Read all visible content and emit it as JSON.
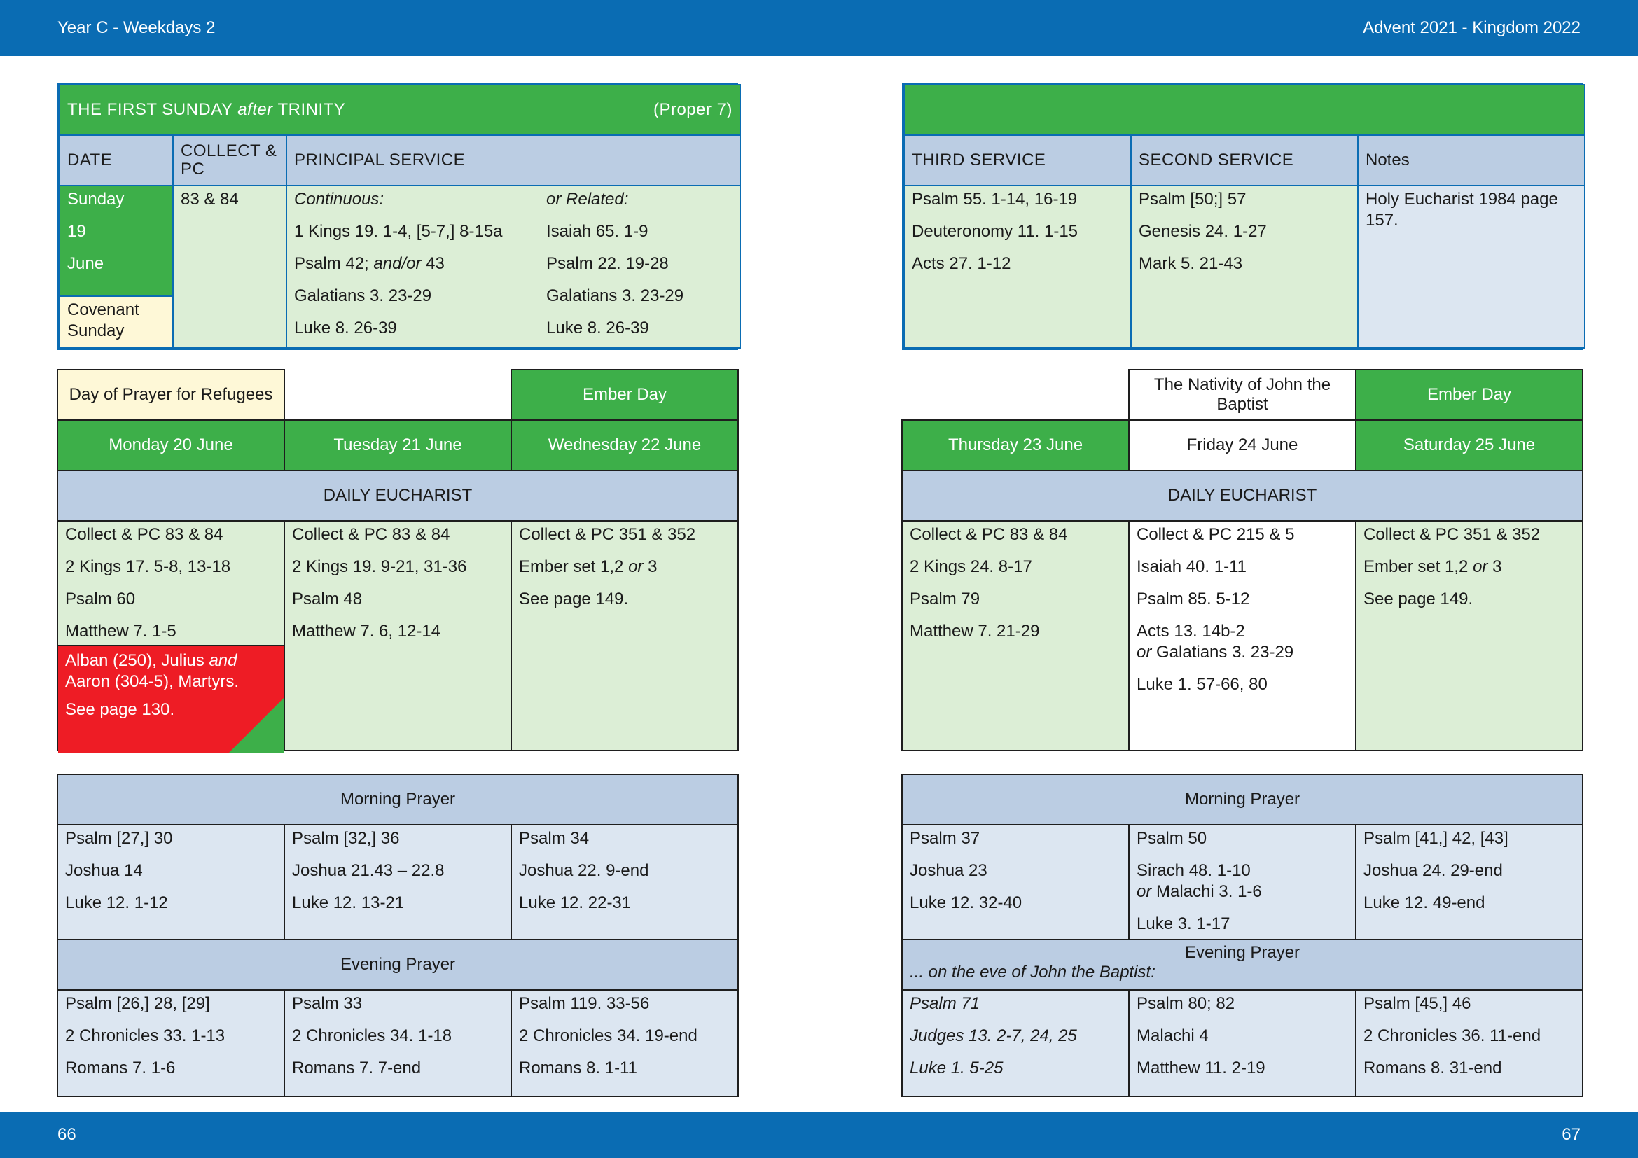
{
  "header": {
    "left": "Year C - Weekdays 2",
    "right": "Advent  2021 - Kingdom 2022"
  },
  "footer": {
    "left_page": "66",
    "right_page": "67"
  },
  "sunday": {
    "title_prefix": "THE FIRST SUNDAY ",
    "title_italic": "after",
    "title_suffix": " TRINITY",
    "proper": "(Proper 7)",
    "headers": {
      "date": "DATE",
      "collect": "COLLECT & PC",
      "principal": "PRINCIPAL SERVICE",
      "third": "THIRD SERVICE",
      "second": "SECOND SERVICE",
      "notes": "Notes"
    },
    "date_lines": [
      "Sunday",
      "19",
      "June"
    ],
    "date_note": "Covenant Sunday",
    "collect": "83 & 84",
    "continuous_label": "Continuous:",
    "continuous": [
      "1 Kings 19. 1-4, [5-7,] 8-15a",
      "Psalm 42; and/or 43",
      "Galatians 3. 23-29",
      "Luke 8. 26-39"
    ],
    "related_label": "or Related:",
    "related": [
      "Isaiah 65. 1-9",
      "Psalm 22. 19-28",
      "Galatians 3. 23-29",
      "Luke 8. 26-39"
    ],
    "third_service": [
      "Psalm 55. 1-14, 16-19",
      "Deuteronomy 11. 1-15",
      "Acts 27. 1-12"
    ],
    "second_service": [
      "Psalm [50;] 57",
      "Genesis 24. 1-27",
      "Mark 5. 21-43"
    ],
    "notes": "Holy Eucharist 1984 page 157."
  },
  "days_left": [
    {
      "label": "Day of Prayer for Refugees",
      "date": "Monday 20 June"
    },
    {
      "label": "",
      "date": "Tuesday 21 June"
    },
    {
      "label": "Ember Day",
      "date": "Wednesday 22 June"
    }
  ],
  "days_right": [
    {
      "label": "",
      "date": "Thursday 23 June"
    },
    {
      "label": "The Nativity of John the Baptist",
      "date": "Friday 24 June"
    },
    {
      "label": "Ember Day",
      "date": "Saturday 25 June"
    }
  ],
  "eucharist_label": "DAILY EUCHARIST",
  "eucharist_left": [
    [
      "Collect & PC 83 & 84",
      "2 Kings 17. 5-8, 13-18",
      "Psalm 60",
      "Matthew 7. 1-5"
    ],
    [
      "Collect & PC 83 & 84",
      "2 Kings 19. 9-21, 31-36",
      "Psalm 48",
      "Matthew 7. 6, 12-14"
    ],
    [
      "Collect & PC 351 & 352",
      "Ember set 1,2 or 3",
      "See page 149."
    ]
  ],
  "monday_commemoration": {
    "line1": "Alban (250), Julius and",
    "line2": "Aaron (304-5), Martyrs.",
    "see": "See page 130."
  },
  "eucharist_right": [
    [
      "Collect & PC 83 & 84",
      "2 Kings 24. 8-17",
      "Psalm 79",
      "Matthew 7. 21-29"
    ],
    [
      "Collect & PC 215 & 5",
      "Isaiah 40. 1-11",
      "Psalm 85. 5-12",
      "Acts 13. 14b-2",
      "or Galatians 3. 23-29",
      "Luke 1. 57-66, 80"
    ],
    [
      "Collect & PC 351 & 352",
      "Ember set 1,2 or 3",
      "See page 149."
    ]
  ],
  "morning_label": "Morning Prayer",
  "evening_label": "Evening Prayer",
  "evening_eve_note": "... on the eve of John the Baptist:",
  "morning_left": [
    [
      "Psalm [27,] 30",
      "Joshua 14",
      "Luke 12. 1-12"
    ],
    [
      "Psalm [32,] 36",
      "Joshua 21.43 – 22.8",
      "Luke 12. 13-21"
    ],
    [
      "Psalm 34",
      "Joshua 22. 9-end",
      "Luke 12. 22-31"
    ]
  ],
  "morning_right": [
    [
      "Psalm 37",
      "Joshua 23",
      "Luke 12. 32-40"
    ],
    [
      "Psalm 50",
      "Sirach 48. 1-10",
      "or Malachi 3. 1-6",
      "Luke 3. 1-17"
    ],
    [
      "Psalm [41,] 42, [43]",
      "Joshua 24. 29-end",
      "Luke 12. 49-end"
    ]
  ],
  "evening_left": [
    [
      "Psalm [26,] 28, [29]",
      "2 Chronicles 33. 1-13",
      "Romans 7. 1-6"
    ],
    [
      "Psalm 33",
      "2 Chronicles 34. 1-18",
      "Romans 7. 7-end"
    ],
    [
      "Psalm 119. 33-56",
      "2 Chronicles 34. 19-end",
      "Romans 8. 1-11"
    ]
  ],
  "evening_right": [
    [
      "Psalm 71",
      "Judges 13. 2-7, 24, 25",
      "Luke 1. 5-25"
    ],
    [
      "Psalm 80; 82",
      "Malachi 4",
      "Matthew 11. 2-19"
    ],
    [
      "Psalm [45,] 46",
      "2 Chronicles 36. 11-end",
      "Romans 8. 31-end"
    ]
  ],
  "colors": {
    "header_blue": "#0a6cb3",
    "green": "#3daf49",
    "red": "#ee1c25",
    "light_green": "#dceed6",
    "light_blue": "#dce6f1",
    "head_blue": "#bbcde3",
    "cream": "#fef8d7"
  }
}
